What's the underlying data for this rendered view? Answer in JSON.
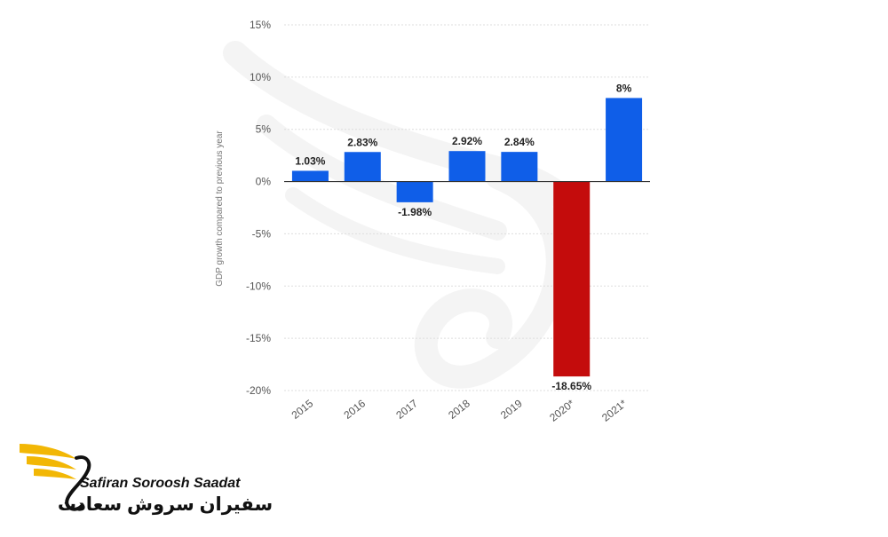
{
  "chart_data": {
    "type": "bar",
    "categories": [
      "2015",
      "2016",
      "2017",
      "2018",
      "2019",
      "2020*",
      "2021*"
    ],
    "values": [
      1.03,
      2.83,
      -1.98,
      2.92,
      2.84,
      -18.65,
      8
    ],
    "data_labels": [
      "1.03%",
      "2.83%",
      "-1.98%",
      "2.92%",
      "2.84%",
      "-18.65%",
      "8%"
    ],
    "ylabel": "GDP growth compared to previous year",
    "xlabel": "",
    "ylim": [
      -20,
      15
    ],
    "yticks": [
      15,
      10,
      5,
      0,
      -5,
      -10,
      -15,
      -20
    ],
    "ytick_labels": [
      "15%",
      "10%",
      "5%",
      "0%",
      "-5%",
      "-10%",
      "-15%",
      "-20%"
    ],
    "grid": true,
    "colors": {
      "default": "#0f5ee8",
      "highlight": "#c40c0c",
      "grid": "#dddddd",
      "zero_line": "#333333"
    },
    "highlight_index": 5
  },
  "logo": {
    "text_en": "Safiran Soroosh Saadat",
    "text_fa": "سفیران سروش سعادت",
    "colors": {
      "wing": "#f2b705",
      "text": "#111111"
    }
  }
}
